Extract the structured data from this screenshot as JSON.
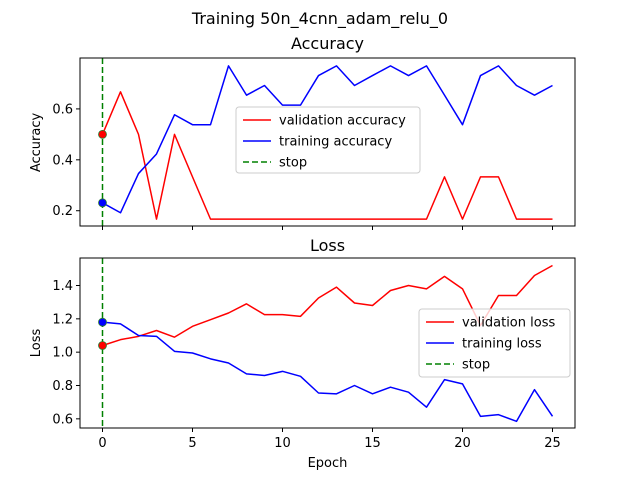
{
  "suptitle": "Training 50n_4cnn_adam_relu_0",
  "colors": {
    "validation": "#ff0000",
    "training": "#0000ff",
    "stop": "#008000"
  },
  "chart_data": [
    {
      "type": "line",
      "title": "Accuracy",
      "xlabel": "",
      "ylabel": "Accuracy",
      "xlim": [
        -1.25,
        26.25
      ],
      "ylim": [
        0.14,
        0.8
      ],
      "xticks": [],
      "yticks": [
        0.2,
        0.4,
        0.6
      ],
      "ytick_labels": [
        "0.2",
        "0.4",
        "0.6"
      ],
      "stop_epoch": 0,
      "legend_position": "center",
      "x": [
        0,
        1,
        2,
        3,
        4,
        5,
        6,
        7,
        8,
        9,
        10,
        11,
        12,
        13,
        14,
        15,
        16,
        17,
        18,
        19,
        20,
        21,
        22,
        23,
        24,
        25
      ],
      "series": [
        {
          "name": "validation accuracy",
          "color": "validation",
          "marker_value": 0.5,
          "values": [
            0.5,
            0.667,
            0.5,
            0.167,
            0.5,
            0.333,
            0.167,
            0.167,
            0.167,
            0.167,
            0.167,
            0.167,
            0.167,
            0.167,
            0.167,
            0.167,
            0.167,
            0.167,
            0.167,
            0.333,
            0.167,
            0.333,
            0.333,
            0.167,
            0.167,
            0.167
          ]
        },
        {
          "name": "training accuracy",
          "color": "training",
          "marker_value": 0.231,
          "values": [
            0.231,
            0.192,
            0.346,
            0.423,
            0.577,
            0.538,
            0.538,
            0.769,
            0.654,
            0.692,
            0.615,
            0.615,
            0.731,
            0.769,
            0.692,
            0.731,
            0.769,
            0.731,
            0.769,
            0.654,
            0.538,
            0.731,
            0.769,
            0.692,
            0.654,
            0.692
          ]
        },
        {
          "name": "stop",
          "color": "stop",
          "style": "dashed"
        }
      ]
    },
    {
      "type": "line",
      "title": "Loss",
      "xlabel": "Epoch",
      "ylabel": "Loss",
      "xlim": [
        -1.25,
        26.25
      ],
      "ylim": [
        0.545,
        1.565
      ],
      "xticks": [
        0,
        5,
        10,
        15,
        20,
        25
      ],
      "xtick_labels": [
        "0",
        "5",
        "10",
        "15",
        "20",
        "25"
      ],
      "yticks": [
        0.6,
        0.8,
        1.0,
        1.2,
        1.4
      ],
      "ytick_labels": [
        "0.6",
        "0.8",
        "1.0",
        "1.2",
        "1.4"
      ],
      "stop_epoch": 0,
      "legend_position": "center right",
      "x": [
        0,
        1,
        2,
        3,
        4,
        5,
        6,
        7,
        8,
        9,
        10,
        11,
        12,
        13,
        14,
        15,
        16,
        17,
        18,
        19,
        20,
        21,
        22,
        23,
        24,
        25
      ],
      "series": [
        {
          "name": "validation loss",
          "color": "validation",
          "marker_value": 1.04,
          "values": [
            1.04,
            1.075,
            1.095,
            1.13,
            1.09,
            1.155,
            1.195,
            1.235,
            1.29,
            1.225,
            1.225,
            1.215,
            1.325,
            1.39,
            1.295,
            1.28,
            1.37,
            1.4,
            1.38,
            1.455,
            1.38,
            1.16,
            1.34,
            1.34,
            1.46,
            1.52
          ]
        },
        {
          "name": "training loss",
          "color": "training",
          "marker_value": 1.18,
          "values": [
            1.18,
            1.17,
            1.1,
            1.095,
            1.005,
            0.995,
            0.96,
            0.935,
            0.87,
            0.86,
            0.885,
            0.855,
            0.755,
            0.75,
            0.8,
            0.75,
            0.79,
            0.76,
            0.67,
            0.835,
            0.81,
            0.615,
            0.625,
            0.585,
            0.775,
            0.615
          ]
        },
        {
          "name": "stop",
          "color": "stop",
          "style": "dashed"
        }
      ]
    }
  ]
}
